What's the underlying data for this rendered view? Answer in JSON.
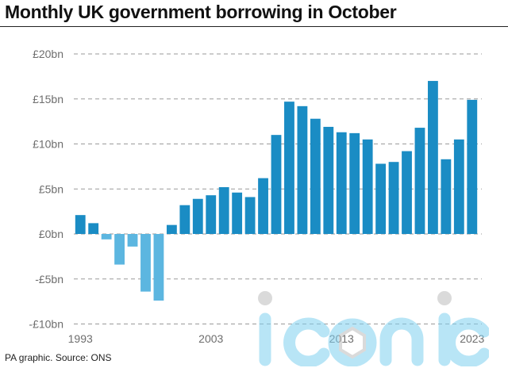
{
  "header": {
    "title": "Monthly UK government borrowing in October"
  },
  "footer": {
    "source": "PA graphic. Source: ONS"
  },
  "watermark": {
    "text": "iconic",
    "color": "#7fd0f0"
  },
  "colors": {
    "positive": "#1a8cc4",
    "negative": "#5cb6e0",
    "grid": "#9a9a9a",
    "tick_text": "#6e6e6e"
  },
  "chart_data": {
    "type": "bar",
    "title": "Monthly UK government borrowing in October",
    "xlabel": "",
    "ylabel": "",
    "ylim": [
      -10,
      20
    ],
    "y_unit": "£bn",
    "ytick_values": [
      20,
      15,
      10,
      5,
      0,
      -5,
      -10
    ],
    "ytick_labels": [
      "£20bn",
      "£15bn",
      "£10bn",
      "£5bn",
      "£0bn",
      "-£5bn",
      "-£10bn"
    ],
    "xtick_labels": [
      "1993",
      "2003",
      "2013",
      "2023"
    ],
    "grid": true,
    "categories": [
      "1993",
      "1994",
      "1995",
      "1996",
      "1997",
      "1998",
      "1999",
      "2000",
      "2001",
      "2002",
      "2003",
      "2004",
      "2005",
      "2006",
      "2007",
      "2008",
      "2009",
      "2010",
      "2011",
      "2012",
      "2013",
      "2014",
      "2015",
      "2016",
      "2017",
      "2018",
      "2019",
      "2020",
      "2021",
      "2022",
      "2023"
    ],
    "values": [
      2.1,
      1.2,
      -0.6,
      -3.4,
      -1.4,
      -6.4,
      -7.4,
      1.0,
      3.2,
      3.9,
      4.3,
      5.2,
      4.6,
      4.1,
      6.2,
      11.0,
      14.7,
      14.2,
      12.8,
      11.9,
      11.3,
      11.2,
      10.5,
      7.8,
      8.0,
      9.2,
      11.8,
      17.0,
      8.3,
      10.5,
      14.9
    ]
  }
}
